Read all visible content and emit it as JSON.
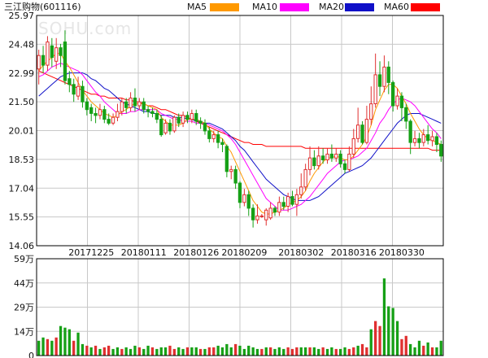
{
  "title": "三江购物(601116)",
  "watermark": "SOHU.com",
  "legend": [
    {
      "name": "MA5",
      "color": "#ff9900"
    },
    {
      "name": "MA10",
      "color": "#ff00ff"
    },
    {
      "name": "MA20",
      "color": "#1010c8"
    },
    {
      "name": "MA60",
      "color": "#ff0000"
    }
  ],
  "colors": {
    "up": "#e03030",
    "down": "#16a016",
    "grid": "#c8c8c8",
    "frame": "#000000"
  },
  "chart_data": [
    {
      "type": "candlestick",
      "title": "三江购物(601116)",
      "ylim": [
        14.06,
        25.97
      ],
      "y_ticks": [
        "25.97",
        "24.48",
        "22.99",
        "21.50",
        "20.01",
        "18.53",
        "17.04",
        "15.55",
        "14.06"
      ],
      "x_tick_labels": [
        "20171225",
        "20180111",
        "20180126",
        "20180209",
        "20180302",
        "20180316",
        "20180330"
      ],
      "x_tick_positions": [
        12,
        24,
        36,
        47,
        60,
        72,
        83
      ],
      "grid": true,
      "candles": [
        [
          23.2,
          23.9,
          22.4,
          24.2
        ],
        [
          23.9,
          23.4,
          23.0,
          24.4
        ],
        [
          23.4,
          24.6,
          23.1,
          24.9
        ],
        [
          24.4,
          23.8,
          23.3,
          24.8
        ],
        [
          23.6,
          24.3,
          23.2,
          24.8
        ],
        [
          24.3,
          23.9,
          23.3,
          24.5
        ],
        [
          24.6,
          22.6,
          22.4,
          25.2
        ],
        [
          22.7,
          22.4,
          22.0,
          23.1
        ],
        [
          22.4,
          21.9,
          21.5,
          22.7
        ],
        [
          21.8,
          22.3,
          21.6,
          22.8
        ],
        [
          22.3,
          21.5,
          21.2,
          22.6
        ],
        [
          21.5,
          21.1,
          20.8,
          21.7
        ],
        [
          21.2,
          20.9,
          20.5,
          21.4
        ],
        [
          20.9,
          20.8,
          20.4,
          21.2
        ],
        [
          20.8,
          21.1,
          20.6,
          21.4
        ],
        [
          21.1,
          20.6,
          20.4,
          21.3
        ],
        [
          20.6,
          20.4,
          20.3,
          20.9
        ],
        [
          20.4,
          20.7,
          20.3,
          20.9
        ],
        [
          20.7,
          21.0,
          20.5,
          21.4
        ],
        [
          21.0,
          21.5,
          20.8,
          21.7
        ],
        [
          21.5,
          21.2,
          20.9,
          21.7
        ],
        [
          21.2,
          21.7,
          21.0,
          22.0
        ],
        [
          21.7,
          21.3,
          21.0,
          22.2
        ],
        [
          21.3,
          21.5,
          21.1,
          21.7
        ],
        [
          21.5,
          21.1,
          20.9,
          21.7
        ],
        [
          21.1,
          21.0,
          20.7,
          21.3
        ],
        [
          21.0,
          20.9,
          20.7,
          21.2
        ],
        [
          20.9,
          20.6,
          20.4,
          21.1
        ],
        [
          20.6,
          19.8,
          19.7,
          20.8
        ],
        [
          19.9,
          20.4,
          19.8,
          20.6
        ],
        [
          20.4,
          20.0,
          19.8,
          20.6
        ],
        [
          20.0,
          20.7,
          19.9,
          20.8
        ],
        [
          20.7,
          20.4,
          20.2,
          20.9
        ],
        [
          20.4,
          20.8,
          20.2,
          21.0
        ],
        [
          20.8,
          20.6,
          20.4,
          21.0
        ],
        [
          20.6,
          20.9,
          20.4,
          21.1
        ],
        [
          20.9,
          20.5,
          20.3,
          21.1
        ],
        [
          20.5,
          20.4,
          20.1,
          20.7
        ],
        [
          20.4,
          20.0,
          19.8,
          20.6
        ],
        [
          20.0,
          19.6,
          19.4,
          20.2
        ],
        [
          19.6,
          19.8,
          19.4,
          20.0
        ],
        [
          19.8,
          19.4,
          19.1,
          20.0
        ],
        [
          19.4,
          19.3,
          18.9,
          19.6
        ],
        [
          19.2,
          17.9,
          17.6,
          19.3
        ],
        [
          17.9,
          18.0,
          17.5,
          18.2
        ],
        [
          18.0,
          17.3,
          17.0,
          18.2
        ],
        [
          17.3,
          16.3,
          16.0,
          17.4
        ],
        [
          16.3,
          16.7,
          16.1,
          17.0
        ],
        [
          16.7,
          16.0,
          15.6,
          16.9
        ],
        [
          16.0,
          15.4,
          15.0,
          16.2
        ],
        [
          15.4,
          15.6,
          15.2,
          16.2
        ],
        [
          15.6,
          15.6,
          15.5,
          15.7
        ],
        [
          15.4,
          15.9,
          15.1,
          16.0
        ],
        [
          15.5,
          16.0,
          15.4,
          16.3
        ],
        [
          16.0,
          15.8,
          15.6,
          16.1
        ],
        [
          15.8,
          16.3,
          15.6,
          16.6
        ],
        [
          16.3,
          16.1,
          15.9,
          16.6
        ],
        [
          16.1,
          16.6,
          15.8,
          16.8
        ],
        [
          16.6,
          16.2,
          16.1,
          16.9
        ],
        [
          16.2,
          16.7,
          15.6,
          17.0
        ],
        [
          16.7,
          17.1,
          16.5,
          17.8
        ],
        [
          17.1,
          18.0,
          16.9,
          18.3
        ],
        [
          18.0,
          18.6,
          17.7,
          19.2
        ],
        [
          18.6,
          18.2,
          18.0,
          19.0
        ],
        [
          18.2,
          18.7,
          18.0,
          19.2
        ],
        [
          18.7,
          18.5,
          18.3,
          19.1
        ],
        [
          18.5,
          18.8,
          18.3,
          19.1
        ],
        [
          18.8,
          18.6,
          18.4,
          19.3
        ],
        [
          18.6,
          18.8,
          18.4,
          19.1
        ],
        [
          18.8,
          18.3,
          18.1,
          19.0
        ],
        [
          18.3,
          18.0,
          17.8,
          18.5
        ],
        [
          18.0,
          18.8,
          17.9,
          19.2
        ],
        [
          18.8,
          19.6,
          18.6,
          20.1
        ],
        [
          19.6,
          20.3,
          19.4,
          21.2
        ],
        [
          20.3,
          19.4,
          19.3,
          20.5
        ],
        [
          19.4,
          20.6,
          19.3,
          21.3
        ],
        [
          20.6,
          21.4,
          20.3,
          22.3
        ],
        [
          21.4,
          22.9,
          21.2,
          24.0
        ],
        [
          22.9,
          22.3,
          21.8,
          23.6
        ],
        [
          22.3,
          23.3,
          22.0,
          23.9
        ],
        [
          23.3,
          22.5,
          21.9,
          23.6
        ],
        [
          22.5,
          21.3,
          21.0,
          22.6
        ],
        [
          21.3,
          21.8,
          21.1,
          22.2
        ],
        [
          21.8,
          21.2,
          20.5,
          22.0
        ],
        [
          21.2,
          20.5,
          20.1,
          21.4
        ],
        [
          20.5,
          19.4,
          18.8,
          20.6
        ],
        [
          19.4,
          19.6,
          19.2,
          20.0
        ],
        [
          19.6,
          19.4,
          19.1,
          19.9
        ],
        [
          19.4,
          19.8,
          19.2,
          20.1
        ],
        [
          19.8,
          19.5,
          19.3,
          20.3
        ],
        [
          19.5,
          19.7,
          19.2,
          20.0
        ],
        [
          19.7,
          19.3,
          18.9,
          19.9
        ],
        [
          19.3,
          18.7,
          18.4,
          19.5
        ]
      ],
      "ma5": [
        23.1,
        23.4,
        23.6,
        23.8,
        24.0,
        24.0,
        23.6,
        23.3,
        22.9,
        22.5,
        22.1,
        21.8,
        21.5,
        21.3,
        21.1,
        20.9,
        20.8,
        20.7,
        20.8,
        21.0,
        21.1,
        21.3,
        21.4,
        21.4,
        21.4,
        21.3,
        21.2,
        21.1,
        20.7,
        20.5,
        20.3,
        20.3,
        20.3,
        20.4,
        20.6,
        20.6,
        20.6,
        20.5,
        20.4,
        20.1,
        19.9,
        19.7,
        19.6,
        19.2,
        18.9,
        18.4,
        17.9,
        17.4,
        16.9,
        16.4,
        16.1,
        15.8,
        15.7,
        15.7,
        15.8,
        15.9,
        16.0,
        16.2,
        16.3,
        16.4,
        16.6,
        16.9,
        17.4,
        17.8,
        18.1,
        18.4,
        18.6,
        18.6,
        18.7,
        18.6,
        18.5,
        18.5,
        18.7,
        19.0,
        19.3,
        19.7,
        20.3,
        21.1,
        21.6,
        22.1,
        22.4,
        22.4,
        22.2,
        21.8,
        21.4,
        20.9,
        20.5,
        20.1,
        19.8,
        19.6,
        19.5,
        19.4,
        19.3
      ],
      "ma10": [
        22.8,
        22.9,
        23.1,
        23.3,
        23.4,
        23.5,
        23.4,
        23.3,
        23.2,
        23.1,
        22.9,
        22.6,
        22.3,
        22.0,
        21.8,
        21.5,
        21.3,
        21.1,
        20.9,
        20.9,
        20.9,
        21.0,
        21.0,
        21.1,
        21.1,
        21.1,
        21.1,
        21.1,
        20.9,
        20.8,
        20.7,
        20.6,
        20.6,
        20.5,
        20.5,
        20.5,
        20.4,
        20.4,
        20.4,
        20.3,
        20.2,
        20.1,
        20.0,
        19.8,
        19.6,
        19.3,
        18.9,
        18.5,
        18.1,
        17.7,
        17.3,
        16.9,
        16.5,
        16.3,
        16.1,
        15.9,
        15.9,
        15.9,
        16.0,
        16.1,
        16.2,
        16.4,
        16.6,
        16.9,
        17.2,
        17.5,
        17.8,
        18.0,
        18.2,
        18.4,
        18.5,
        18.5,
        18.6,
        18.7,
        18.9,
        19.1,
        19.5,
        19.9,
        20.4,
        20.7,
        21.1,
        21.4,
        21.6,
        21.7,
        21.6,
        21.5,
        21.3,
        21.0,
        20.7,
        20.4,
        20.1,
        19.9,
        19.6
      ],
      "ma20": [
        21.8,
        22.0,
        22.2,
        22.4,
        22.6,
        22.8,
        22.9,
        23.0,
        23.0,
        23.0,
        23.0,
        22.9,
        22.7,
        22.6,
        22.4,
        22.2,
        22.1,
        21.9,
        21.7,
        21.5,
        21.4,
        21.3,
        21.2,
        21.1,
        21.0,
        21.0,
        20.9,
        20.9,
        20.8,
        20.8,
        20.8,
        20.7,
        20.7,
        20.7,
        20.6,
        20.6,
        20.5,
        20.5,
        20.4,
        20.4,
        20.3,
        20.2,
        20.1,
        19.9,
        19.7,
        19.5,
        19.2,
        19.0,
        18.7,
        18.4,
        18.1,
        17.8,
        17.5,
        17.3,
        17.1,
        16.9,
        16.7,
        16.6,
        16.5,
        16.4,
        16.4,
        16.4,
        16.4,
        16.5,
        16.6,
        16.8,
        17.0,
        17.2,
        17.4,
        17.6,
        17.8,
        17.9,
        18.0,
        18.1,
        18.2,
        18.4,
        18.6,
        18.9,
        19.2,
        19.5,
        19.8,
        20.1,
        20.4,
        20.6,
        20.8,
        20.9,
        20.9,
        20.9,
        20.8,
        20.7,
        20.6,
        20.5,
        20.4
      ],
      "ma60": [
        23.1,
        23.0,
        22.9,
        22.8,
        22.7,
        22.6,
        22.5,
        22.4,
        22.3,
        22.2,
        22.1,
        22.0,
        21.9,
        21.9,
        21.8,
        21.8,
        21.7,
        21.7,
        21.7,
        21.7,
        21.6,
        21.6,
        21.5,
        21.5,
        21.4,
        21.3,
        21.3,
        21.2,
        21.1,
        21.1,
        21.0,
        20.9,
        20.8,
        20.8,
        20.7,
        20.6,
        20.5,
        20.4,
        20.3,
        20.2,
        20.1,
        20.0,
        19.9,
        19.8,
        19.7,
        19.6,
        19.5,
        19.4,
        19.4,
        19.3,
        19.3,
        19.3,
        19.2,
        19.2,
        19.2,
        19.2,
        19.2,
        19.2,
        19.2,
        19.2,
        19.2,
        19.1,
        19.1,
        19.1,
        19.1,
        19.1,
        19.1,
        19.1,
        19.1,
        19.1,
        19.1,
        19.1,
        19.1,
        19.1,
        19.1,
        19.1,
        19.1,
        19.1,
        19.1,
        19.1,
        19.1,
        19.1,
        19.1,
        19.1,
        19.1,
        19.1,
        19.1,
        19.1,
        19.1,
        19.1,
        19.0,
        19.0,
        19.0
      ]
    },
    {
      "type": "bar",
      "title": "",
      "ylabel": "",
      "ylim": [
        0,
        59
      ],
      "unit": "万",
      "y_ticks": [
        "59万",
        "44万",
        "29万",
        "14万",
        "0"
      ],
      "values": [
        9,
        11,
        10,
        9,
        11,
        18,
        17,
        16,
        9,
        14,
        7,
        6,
        5,
        6,
        4,
        5,
        6,
        4,
        5,
        4,
        5,
        4,
        6,
        5,
        4,
        6,
        5,
        4,
        5,
        5,
        6,
        4,
        5,
        4,
        5,
        5,
        5,
        4,
        4,
        5,
        5,
        6,
        5,
        7,
        5,
        7,
        6,
        4,
        6,
        5,
        4,
        4,
        5,
        5,
        4,
        5,
        4,
        5,
        4,
        5,
        5,
        5,
        5,
        5,
        4,
        5,
        4,
        5,
        4,
        4,
        5,
        4,
        5,
        6,
        7,
        5,
        16,
        21,
        18,
        47,
        30,
        29,
        21,
        10,
        12,
        7,
        5,
        9,
        6,
        8,
        5,
        5,
        9
      ],
      "directions": "ddududdduddududuuddudddudduddduuddudduduuddddudddddududdduuuddudduddudduuduuduudddduudddududd"
    }
  ]
}
